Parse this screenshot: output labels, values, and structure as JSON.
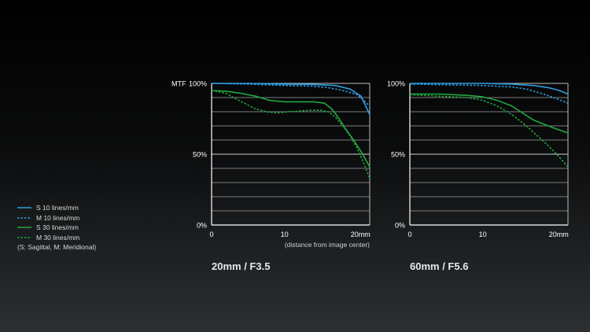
{
  "legend": {
    "items": [
      {
        "label": "S  10 lines/mm",
        "color": "#2f9de0",
        "dashed": false
      },
      {
        "label": "M  10 lines/mm",
        "color": "#2f9de0",
        "dashed": true
      },
      {
        "label": "S  30 lines/mm",
        "color": "#1fa83e",
        "dashed": false
      },
      {
        "label": "M  30 lines/mm",
        "color": "#1fa83e",
        "dashed": true
      }
    ],
    "note": "(S: Sagittal, M: Meridional)"
  },
  "chart_data": [
    {
      "type": "line",
      "title": "20mm / F3.5",
      "ylabel": "MTF",
      "xlabel": "(distance from image center)",
      "xlim": [
        0,
        21.7
      ],
      "ylim": [
        0,
        100
      ],
      "x_ticks": [
        "0",
        "10",
        "20mm"
      ],
      "y_ticks": [
        "0%",
        "50%",
        "100%"
      ],
      "y_tick_values": [
        0,
        50,
        100
      ],
      "series": [
        {
          "name": "S 10 lines/mm",
          "color": "#2f9de0",
          "dash": false,
          "points": [
            [
              0,
              100
            ],
            [
              5,
              100
            ],
            [
              10,
              99.5
            ],
            [
              14,
              99.3
            ],
            [
              17,
              98.5
            ],
            [
              19,
              96
            ],
            [
              20.5,
              91
            ],
            [
              21.7,
              78
            ]
          ]
        },
        {
          "name": "M 10 lines/mm",
          "color": "#2f9de0",
          "dash": true,
          "points": [
            [
              0,
              100
            ],
            [
              5,
              99.5
            ],
            [
              10,
              98.5
            ],
            [
              14,
              98
            ],
            [
              16,
              97
            ],
            [
              18,
              95
            ],
            [
              20,
              92
            ],
            [
              21.7,
              84
            ]
          ]
        },
        {
          "name": "S 30 lines/mm",
          "color": "#1fa83e",
          "dash": false,
          "points": [
            [
              0,
              95
            ],
            [
              2,
              94.5
            ],
            [
              4,
              93
            ],
            [
              6,
              91
            ],
            [
              8,
              88
            ],
            [
              10,
              87
            ],
            [
              12,
              87
            ],
            [
              14,
              87
            ],
            [
              15.5,
              86
            ],
            [
              16.5,
              82
            ],
            [
              17.5,
              75
            ],
            [
              18.5,
              67
            ],
            [
              19.5,
              60
            ],
            [
              20.5,
              52
            ],
            [
              21.7,
              41
            ]
          ]
        },
        {
          "name": "M 30 lines/mm",
          "color": "#1fa83e",
          "dash": true,
          "points": [
            [
              0,
              95
            ],
            [
              2,
              93
            ],
            [
              3,
              90
            ],
            [
              4.5,
              86
            ],
            [
              6,
              82
            ],
            [
              7.5,
              80
            ],
            [
              9,
              79
            ],
            [
              10.5,
              80
            ],
            [
              12,
              80.5
            ],
            [
              13.5,
              81
            ],
            [
              15,
              81
            ],
            [
              16,
              80
            ],
            [
              17,
              76
            ],
            [
              18,
              70
            ],
            [
              19,
              63
            ],
            [
              20,
              54
            ],
            [
              21,
              42
            ],
            [
              21.7,
              33
            ]
          ]
        }
      ]
    },
    {
      "type": "line",
      "title": "60mm / F5.6",
      "ylabel": "",
      "xlabel": "",
      "xlim": [
        0,
        21.7
      ],
      "ylim": [
        0,
        100
      ],
      "x_ticks": [
        "0",
        "10",
        "20mm"
      ],
      "y_ticks": [
        "0%",
        "50%",
        "100%"
      ],
      "y_tick_values": [
        0,
        50,
        100
      ],
      "series": [
        {
          "name": "S 10 lines/mm",
          "color": "#2f9de0",
          "dash": false,
          "points": [
            [
              0,
              100
            ],
            [
              5,
              100
            ],
            [
              10,
              100
            ],
            [
              14,
              99.5
            ],
            [
              17,
              98.5
            ],
            [
              19,
              97
            ],
            [
              20.5,
              95
            ],
            [
              21.7,
              92.5
            ]
          ]
        },
        {
          "name": "M 10 lines/mm",
          "color": "#2f9de0",
          "dash": true,
          "points": [
            [
              0,
              99.5
            ],
            [
              5,
              99
            ],
            [
              10,
              98.5
            ],
            [
              14,
              97.5
            ],
            [
              16,
              96
            ],
            [
              18,
              93
            ],
            [
              20,
              89.5
            ],
            [
              21.7,
              86
            ]
          ]
        },
        {
          "name": "S 30 lines/mm",
          "color": "#1fa83e",
          "dash": false,
          "points": [
            [
              0,
              92.5
            ],
            [
              4,
              92.5
            ],
            [
              8,
              91.5
            ],
            [
              10,
              90.5
            ],
            [
              12,
              88
            ],
            [
              14,
              84
            ],
            [
              15.5,
              79
            ],
            [
              17,
              74
            ],
            [
              18.5,
              71
            ],
            [
              20,
              68
            ],
            [
              21.7,
              65
            ]
          ]
        },
        {
          "name": "M 30 lines/mm",
          "color": "#1fa83e",
          "dash": true,
          "points": [
            [
              0,
              92
            ],
            [
              4,
              91
            ],
            [
              8,
              90
            ],
            [
              10,
              88
            ],
            [
              12,
              84
            ],
            [
              14,
              78
            ],
            [
              16,
              70
            ],
            [
              17.5,
              63
            ],
            [
              19,
              56
            ],
            [
              20.5,
              48
            ],
            [
              21.7,
              41
            ]
          ]
        }
      ]
    }
  ]
}
